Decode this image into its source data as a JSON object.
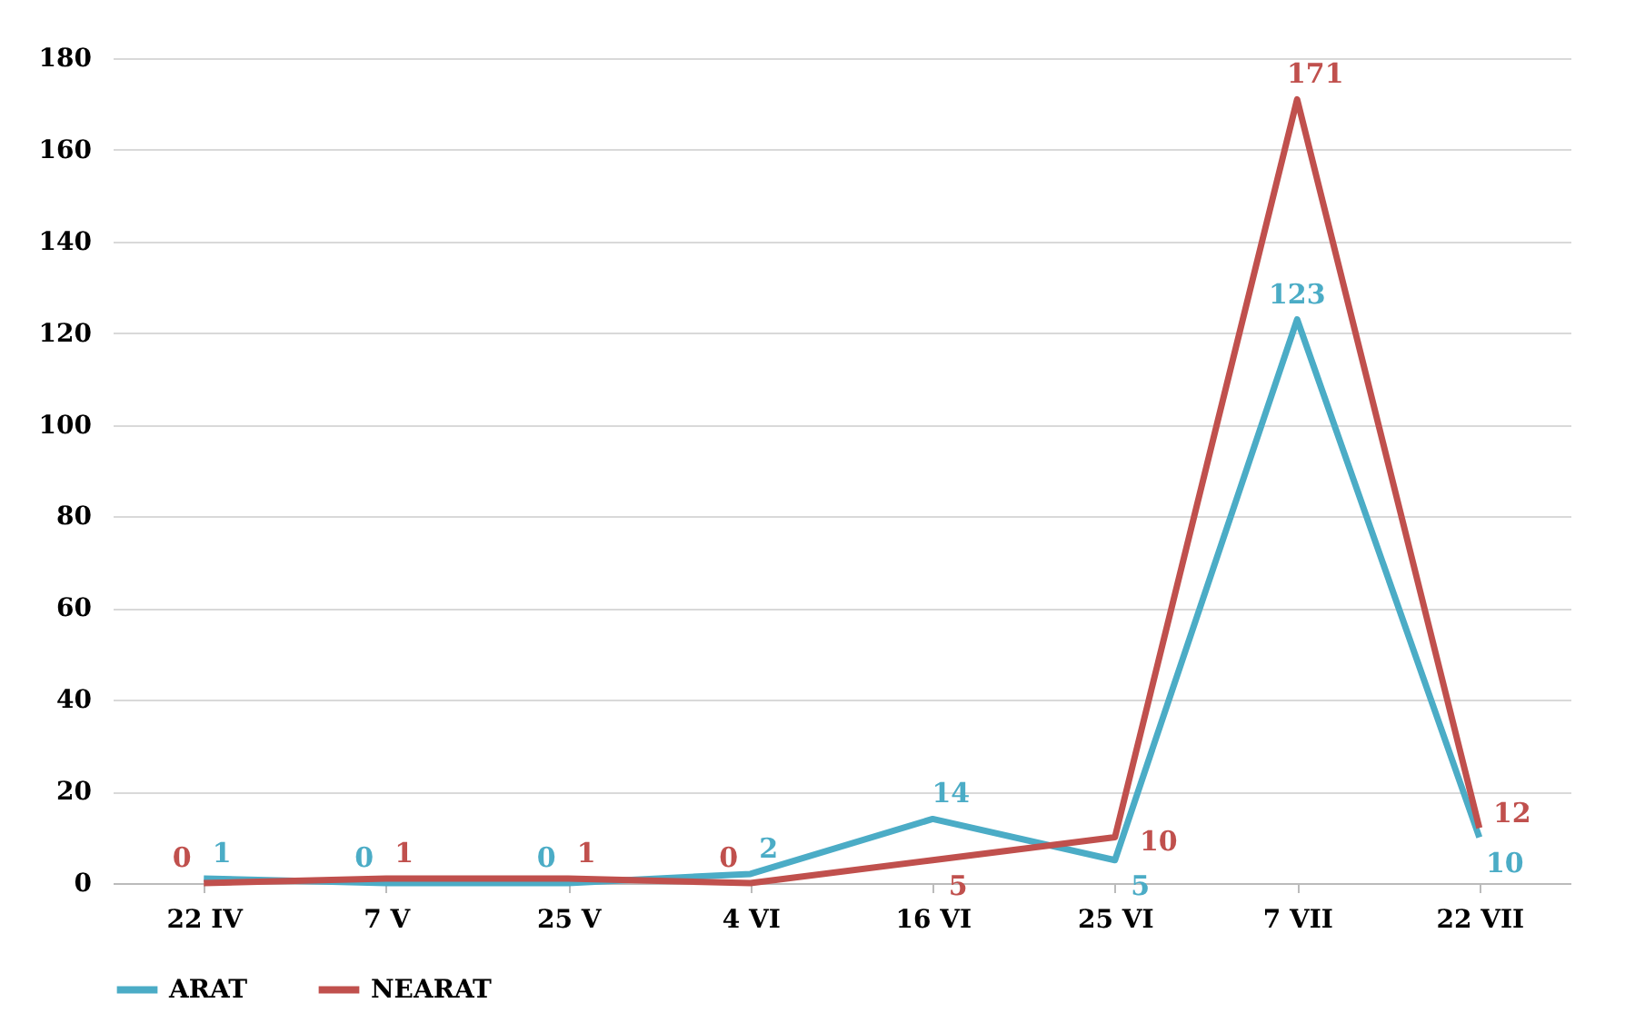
{
  "chart_data": {
    "type": "line",
    "categories": [
      "22 IV",
      "7 V",
      "25 V",
      "4 VI",
      "16 VI",
      "25 VI",
      "7 VII",
      "22 VII"
    ],
    "series": [
      {
        "name": "ARAT",
        "color": "#4bacc6",
        "values": [
          1,
          0,
          0,
          2,
          14,
          5,
          123,
          10
        ]
      },
      {
        "name": "NEARAT",
        "color": "#c0504d",
        "values": [
          0,
          1,
          1,
          0,
          5,
          10,
          171,
          12
        ]
      }
    ],
    "ylim": [
      0,
      180
    ],
    "yticks": [
      0,
      20,
      40,
      60,
      80,
      100,
      120,
      140,
      160,
      180
    ],
    "grid": "y",
    "legend": "bottom",
    "data_labels": true,
    "marker": "none",
    "line_style": "solid"
  }
}
